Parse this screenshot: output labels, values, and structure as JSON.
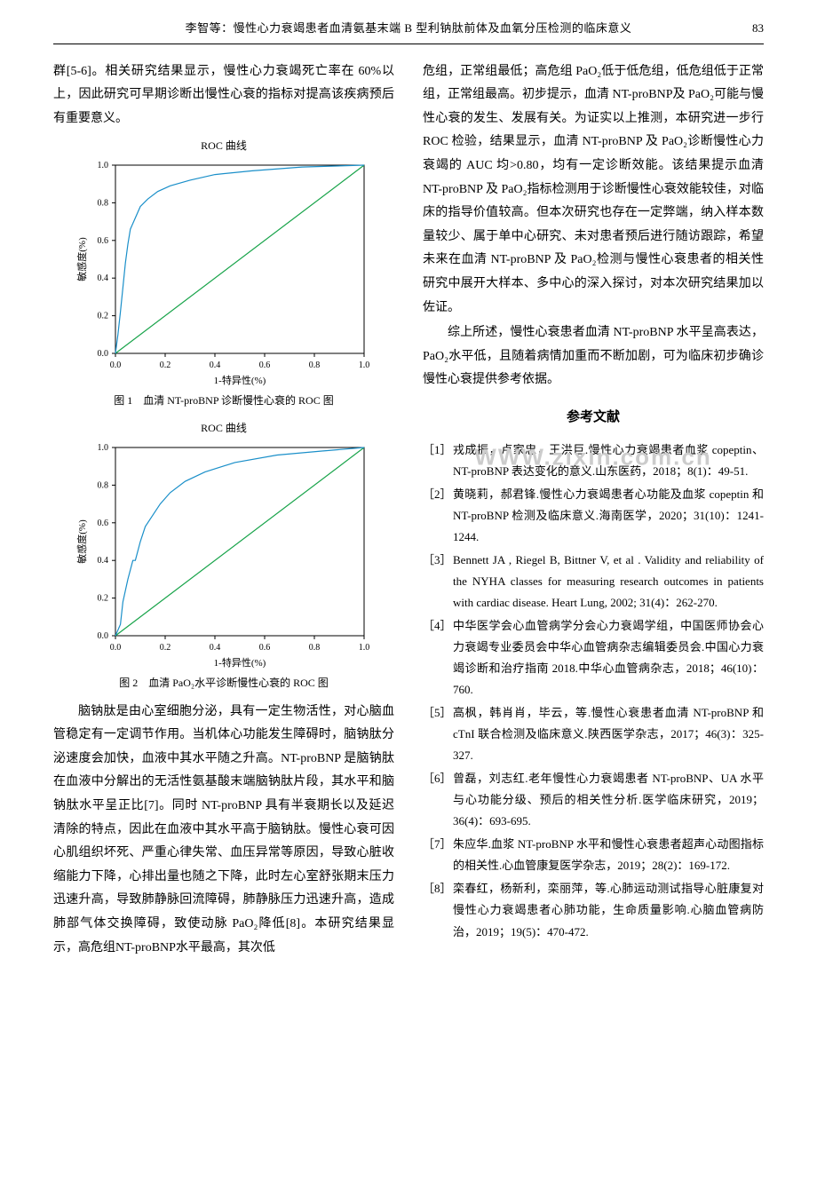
{
  "header": {
    "title": "李智等：慢性心力衰竭患者血清氨基末端 B 型利钠肽前体及血氧分压检测的临床意义",
    "page": "83"
  },
  "watermark": "WWW.zixin.com.cn",
  "left": {
    "p1": "群[5-6]。相关研究结果显示，慢性心力衰竭死亡率在 60%以上，因此研究可早期诊断出慢性心衰的指标对提高该疾病预后有重要意义。",
    "p2": "脑钠肽是由心室细胞分泌，具有一定生物活性，对心脑血管稳定有一定调节作用。当机体心功能发生障碍时，脑钠肽分泌速度会加快，血液中其水平随之升高。NT-proBNP 是脑钠肽在血液中分解出的无活性氨基酸末端脑钠肽片段，其水平和脑钠肽水平呈正比[7]。同时 NT-proBNP 具有半衰期长以及延迟清除的特点，因此在血液中其水平高于脑钠肽。慢性心衰可因心肌组织坏死、严重心律失常、血压异常等原因，导致心脏收缩能力下降，心排出量也随之下降，此时左心室舒张期末压力迅速升高，导致肺静脉回流障碍，肺静脉压力迅速升高，造成肺部气体交换障碍，致使动脉 PaO₂降低[8]。本研究结果显示，高危组NT-proBNP水平最高，其次低"
  },
  "right": {
    "p1": "危组，正常组最低；高危组 PaO₂低于低危组，低危组低于正常组，正常组最高。初步提示，血清 NT-proBNP及 PaO₂可能与慢性心衰的发生、发展有关。为证实以上推测，本研究进一步行 ROC 检验，结果显示，血清 NT-proBNP 及 PaO₂诊断慢性心力衰竭的 AUC 均>0.80，均有一定诊断效能。该结果提示血清 NT-proBNP 及 PaO₂指标检测用于诊断慢性心衰效能较佳，对临床的指导价值较高。但本次研究也存在一定弊端，纳入样本数量较少、属于单中心研究、未对患者预后进行随访跟踪，希望未来在血清 NT-proBNP 及 PaO₂检测与慢性心衰患者的相关性研究中展开大样本、多中心的深入探讨，对本次研究结果加以佐证。",
    "p2": "综上所述，慢性心衰患者血清 NT-proBNP 水平呈高表达，PaO₂水平低，且随着病情加重而不断加剧，可为临床初步确诊慢性心衰提供参考依据。"
  },
  "refs_title": "参考文献",
  "refs": [
    {
      "n": "［1］",
      "t": "戎成振，卢家忠，王洪巨.慢性心力衰竭患者血浆 copeptin、NT-proBNP 表达变化的意义.山东医药，2018；8(1)：49-51."
    },
    {
      "n": "［2］",
      "t": "黄晓莉，郝君锋.慢性心力衰竭患者心功能及血浆 copeptin 和 NT-proBNP 检测及临床意义.海南医学，2020；31(10)：1241-1244."
    },
    {
      "n": "［3］",
      "t": "Bennett JA , Riegel B, Bittner V, et al . Validity and reliability of the NYHA classes for measuring research outcomes in patients with cardiac disease. Heart Lung, 2002; 31(4)：262-270."
    },
    {
      "n": "［4］",
      "t": "中华医学会心血管病学分会心力衰竭学组，中国医师协会心力衰竭专业委员会中华心血管病杂志编辑委员会.中国心力衰竭诊断和治疗指南 2018.中华心血管病杂志，2018；46(10)：760."
    },
    {
      "n": "［5］",
      "t": "高枫，韩肖肖，毕云，等.慢性心衰患者血清 NT-proBNP 和 cTnI 联合检测及临床意义.陕西医学杂志，2017；46(3)：325-327."
    },
    {
      "n": "［6］",
      "t": "曾磊，刘志红.老年慢性心力衰竭患者 NT-proBNP、UA 水平与心功能分级、预后的相关性分析.医学临床研究，2019；36(4)：693-695."
    },
    {
      "n": "［7］",
      "t": "朱应华.血浆 NT-proBNP 水平和慢性心衰患者超声心动图指标的相关性.心血管康复医学杂志，2019；28(2)：169-172."
    },
    {
      "n": "［8］",
      "t": "栾春红，杨新利，栾丽萍，等.心肺运动测试指导心脏康复对慢性心力衰竭患者心肺功能，生命质量影响.心脑血管病防治，2019；19(5)：470-472."
    }
  ],
  "chart1": {
    "type": "line",
    "title_top": "ROC 曲线",
    "caption": "图 1　血清 NT-proBNP 诊断慢性心衰的 ROC 图",
    "xlabel": "1-特异性(%)",
    "ylabel": "敏感度(%)",
    "xlim": [
      0,
      1
    ],
    "ylim": [
      0,
      1
    ],
    "xticks": [
      0.0,
      0.2,
      0.4,
      0.6,
      0.8,
      1.0
    ],
    "yticks": [
      0.0,
      0.2,
      0.4,
      0.6,
      0.8,
      1.0
    ],
    "font_size": 10,
    "line_color": "#1a8fc9",
    "diag_color": "#17a349",
    "axis_color": "#000000",
    "background": "#ffffff",
    "line_width": 1.2,
    "roc_points": [
      [
        0.0,
        0.0
      ],
      [
        0.01,
        0.1
      ],
      [
        0.02,
        0.22
      ],
      [
        0.03,
        0.35
      ],
      [
        0.04,
        0.48
      ],
      [
        0.05,
        0.58
      ],
      [
        0.06,
        0.66
      ],
      [
        0.08,
        0.72
      ],
      [
        0.1,
        0.78
      ],
      [
        0.13,
        0.82
      ],
      [
        0.17,
        0.86
      ],
      [
        0.22,
        0.89
      ],
      [
        0.3,
        0.92
      ],
      [
        0.4,
        0.95
      ],
      [
        0.55,
        0.97
      ],
      [
        0.75,
        0.99
      ],
      [
        1.0,
        1.0
      ]
    ],
    "diag_points": [
      [
        0,
        0
      ],
      [
        1,
        1
      ]
    ]
  },
  "chart2": {
    "type": "line",
    "title_top": "ROC 曲线",
    "caption": "图 2　血清 PaO₂水平诊断慢性心衰的 ROC 图",
    "xlabel": "1-特异性(%)",
    "ylabel": "敏感度(%)",
    "xlim": [
      0,
      1
    ],
    "ylim": [
      0,
      1
    ],
    "xticks": [
      0.0,
      0.2,
      0.4,
      0.6,
      0.8,
      1.0
    ],
    "yticks": [
      0.0,
      0.2,
      0.4,
      0.6,
      0.8,
      1.0
    ],
    "font_size": 10,
    "line_color": "#1a8fc9",
    "diag_color": "#17a349",
    "axis_color": "#000000",
    "background": "#ffffff",
    "line_width": 1.2,
    "roc_points": [
      [
        0.0,
        0.0
      ],
      [
        0.02,
        0.06
      ],
      [
        0.03,
        0.18
      ],
      [
        0.05,
        0.3
      ],
      [
        0.07,
        0.4
      ],
      [
        0.08,
        0.4
      ],
      [
        0.1,
        0.5
      ],
      [
        0.12,
        0.58
      ],
      [
        0.15,
        0.64
      ],
      [
        0.18,
        0.7
      ],
      [
        0.22,
        0.76
      ],
      [
        0.28,
        0.82
      ],
      [
        0.36,
        0.87
      ],
      [
        0.48,
        0.92
      ],
      [
        0.65,
        0.96
      ],
      [
        0.82,
        0.98
      ],
      [
        1.0,
        1.0
      ]
    ],
    "diag_points": [
      [
        0,
        0
      ],
      [
        1,
        1
      ]
    ]
  }
}
